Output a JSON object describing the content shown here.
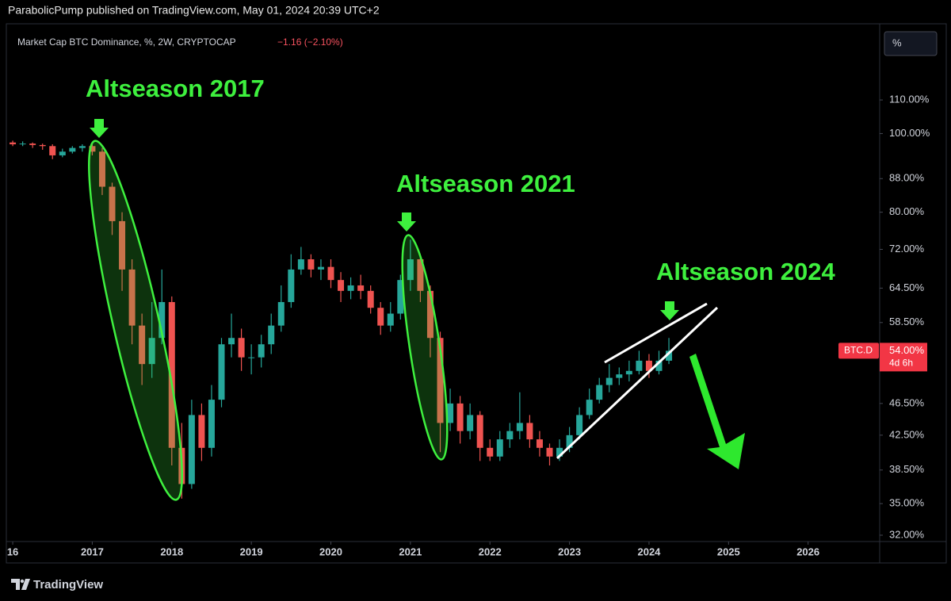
{
  "header": {
    "publisher": "ParabolicPump published on TradingView.com, May 01, 2024 20:39 UTC+2"
  },
  "footer": {
    "brand": "TradingView"
  },
  "chart_data": {
    "type": "candlestick",
    "title": "Market Cap BTC Dominance, %, 2W, CRYPTOCAP",
    "change": "−1.16 (−2.10%)",
    "scale_button": "%",
    "symbol": "BTC.D",
    "current_value": {
      "value": 54,
      "label": "54.00%"
    },
    "countdown": "4d 6h",
    "annotations": [
      "Altseason 2017",
      "Altseason 2021",
      "Altseason 2024"
    ],
    "log_scale": true,
    "up_color": "#26a69a",
    "down_color": "#ef5350",
    "xlim": [
      2015.84,
      2026.9
    ],
    "ylim": [
      31.43,
      134.1
    ],
    "xticks": [
      {
        "value": 2016,
        "label": "16"
      },
      2017,
      2018,
      2019,
      2020,
      2021,
      2022,
      2023,
      2024,
      2025,
      2026
    ],
    "yticks": [
      {
        "value": 32,
        "label": "32.00%"
      },
      {
        "value": 35,
        "label": "35.00%"
      },
      {
        "value": 38.5,
        "label": "38.50%"
      },
      {
        "value": 42.5,
        "label": "42.50%"
      },
      {
        "value": 46.5,
        "label": "46.50%"
      },
      {
        "value": 58.5,
        "label": "58.50%"
      },
      {
        "value": 64.5,
        "label": "64.50%"
      },
      {
        "value": 72,
        "label": "72.00%"
      },
      {
        "value": 80,
        "label": "80.00%"
      },
      {
        "value": 88,
        "label": "88.00%"
      },
      {
        "value": 100,
        "label": "100.00%"
      },
      {
        "value": 110,
        "label": "110.00%"
      }
    ],
    "x": [
      2015.875,
      2016.0,
      2016.125,
      2016.25,
      2016.375,
      2016.5,
      2016.625,
      2016.75,
      2016.875,
      2017.0,
      2017.125,
      2017.25,
      2017.375,
      2017.5,
      2017.625,
      2017.75,
      2017.875,
      2018.0,
      2018.125,
      2018.25,
      2018.375,
      2018.5,
      2018.625,
      2018.75,
      2018.875,
      2019.0,
      2019.125,
      2019.25,
      2019.375,
      2019.5,
      2019.625,
      2019.75,
      2019.875,
      2020.0,
      2020.125,
      2020.25,
      2020.375,
      2020.5,
      2020.625,
      2020.75,
      2020.875,
      2021.0,
      2021.125,
      2021.25,
      2021.375,
      2021.5,
      2021.625,
      2021.75,
      2021.875,
      2022.0,
      2022.125,
      2022.25,
      2022.375,
      2022.5,
      2022.625,
      2022.75,
      2022.875,
      2023.0,
      2023.125,
      2023.25,
      2023.375,
      2023.5,
      2023.625,
      2023.75,
      2023.875,
      2024.0,
      2024.125,
      2024.25
    ],
    "open": [
      97.5,
      97.5,
      97,
      97.2,
      96.8,
      96.5,
      94,
      95,
      96,
      96.5,
      95,
      86,
      78,
      68,
      58,
      52,
      56,
      62,
      41,
      37,
      45,
      41,
      47,
      55,
      56,
      53,
      53,
      55,
      58,
      62,
      68,
      70,
      68,
      68.5,
      66,
      64,
      65,
      64,
      61,
      58,
      60,
      66,
      70,
      64,
      56,
      44,
      46.5,
      43,
      45,
      41,
      40,
      42,
      43,
      44,
      42,
      41,
      40,
      41,
      42.5,
      45,
      47,
      49,
      50,
      50.5,
      51,
      52.5,
      51,
      52.5
    ],
    "high": [
      98,
      98,
      97.8,
      97.5,
      97.2,
      97,
      95.8,
      96.5,
      97,
      97.5,
      96,
      87,
      80,
      70,
      60,
      62,
      68,
      63,
      44,
      47,
      46.5,
      49,
      56,
      60,
      57.5,
      55,
      56.5,
      60,
      65,
      71,
      72.5,
      71,
      70,
      70,
      67.5,
      66.5,
      67,
      65,
      62,
      62,
      67,
      74,
      71,
      65,
      57,
      48.5,
      47.5,
      46.5,
      45.5,
      42,
      43,
      44,
      48,
      45,
      43,
      41.5,
      42,
      43.5,
      46,
      48.5,
      50,
      52,
      51.5,
      52.5,
      54,
      53.5,
      54,
      56
    ],
    "low": [
      97,
      96.5,
      96.5,
      96,
      95.5,
      93,
      93.5,
      94.5,
      95,
      94,
      84,
      75,
      64,
      55,
      49,
      50,
      55,
      39,
      35.5,
      36.5,
      39.5,
      40,
      46,
      53,
      51,
      50.5,
      51.5,
      53.5,
      57,
      61,
      67,
      66.5,
      66,
      64.5,
      62,
      62.5,
      62.5,
      60,
      56.5,
      57,
      59,
      64,
      62,
      53,
      40.5,
      43,
      41.5,
      42,
      39.5,
      39.5,
      39.5,
      41,
      42,
      41,
      40,
      39,
      39.5,
      40.5,
      42,
      44.5,
      46.5,
      48,
      49,
      49.5,
      50.5,
      50,
      50.5,
      52
    ],
    "close": [
      97.5,
      97,
      97.2,
      96.8,
      96.5,
      94,
      95,
      96,
      96.5,
      95,
      86,
      78,
      68,
      58,
      52,
      56,
      62,
      41,
      37,
      45,
      41,
      47,
      55,
      56,
      53,
      53,
      55,
      58,
      62,
      68,
      70,
      68,
      68.5,
      66,
      64,
      65,
      64,
      61,
      58,
      60,
      66,
      70,
      64,
      56,
      44,
      46.5,
      43,
      45,
      41,
      40,
      42,
      43,
      44,
      42,
      41,
      40,
      41,
      42.5,
      45,
      47,
      49,
      50,
      50.5,
      51,
      52.5,
      51,
      52.5,
      54
    ]
  }
}
